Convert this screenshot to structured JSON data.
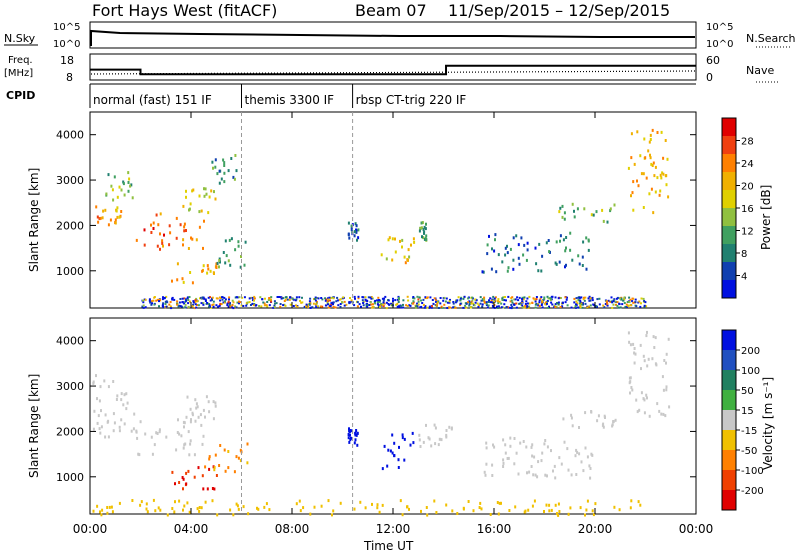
{
  "header": {
    "radar": "Fort Hays West (fitACF)",
    "beam": "Beam 07",
    "dates": "11/Sep/2015 – 12/Sep/2015"
  },
  "strips": {
    "nsky_label": "N.Sky",
    "nsky_ticks": [
      "10^5",
      "10^0"
    ],
    "nsearch_label": "N.Search",
    "freq_label": "Freq.",
    "freq_unit": "[MHz]",
    "freq_ticks": [
      "18",
      "8"
    ],
    "nave_label": "Nave",
    "nave_ticks": [
      "60",
      "0"
    ],
    "cpid_label": "CPID"
  },
  "cpid": [
    {
      "name": "normal (fast) 151 IF",
      "start_h": 0
    },
    {
      "name": "themis 3300 IF",
      "start_h": 6
    },
    {
      "name": "rbsp CT-trig 220 IF",
      "start_h": 10.4
    }
  ],
  "power_panel": {
    "ylabel": "Slant Range [km]",
    "yticks": [
      "4000",
      "3000",
      "2000",
      "1000"
    ],
    "cbar_label": "Power [dB]",
    "cbar_ticks": [
      "28",
      "24",
      "20",
      "16",
      "12",
      "8",
      "4"
    ],
    "cbar_colors": [
      "#e00000",
      "#f04010",
      "#ff8000",
      "#f0b000",
      "#e0d000",
      "#90c040",
      "#40a060",
      "#208070",
      "#1040b0",
      "#0010e0"
    ]
  },
  "velocity_panel": {
    "ylabel": "Slant Range [km]",
    "yticks": [
      "4000",
      "3000",
      "2000",
      "1000"
    ],
    "cbar_label": "Velocity [m s⁻¹]",
    "cbar_ticks": [
      "200",
      "100",
      "50",
      "15",
      "-15",
      "-50",
      "-100",
      "-200"
    ],
    "cbar_colors": [
      "#0010e0",
      "#2050c0",
      "#208060",
      "#40b040",
      "#c8c8c8",
      "#f0c000",
      "#ff8000",
      "#f04000",
      "#e00000"
    ]
  },
  "xaxis": {
    "label": "Time UT",
    "ticks": [
      "00:00",
      "04:00",
      "08:00",
      "12:00",
      "16:00",
      "20:00",
      "00:00"
    ]
  },
  "chart_data": {
    "type": "heatmap",
    "title": "Fort Hays West (fitACF) Beam 07 11/Sep/2015 – 12/Sep/2015",
    "xlabel": "Time UT",
    "ylabel": "Slant Range [km]",
    "xlim": [
      0,
      24
    ],
    "ylim": [
      180,
      4500
    ],
    "frequency_steps": [
      {
        "start_h": 0,
        "end_h": 2.0,
        "freq_mhz": 12
      },
      {
        "start_h": 2.0,
        "end_h": 14.1,
        "freq_mhz": 10.2
      },
      {
        "start_h": 14.1,
        "end_h": 24,
        "freq_mhz": 13.5
      }
    ],
    "power_regions": [
      {
        "t0": 0,
        "t1": 1.2,
        "r0": 2000,
        "r1": 2500,
        "db": 22
      },
      {
        "t0": 0.6,
        "t1": 1.7,
        "r0": 2500,
        "r1": 3200,
        "db": 12
      },
      {
        "t0": 1.8,
        "t1": 4.5,
        "r0": 1500,
        "r1": 2300,
        "db": 24
      },
      {
        "t0": 3.6,
        "t1": 5.0,
        "r0": 2300,
        "r1": 2900,
        "db": 16
      },
      {
        "t0": 3.2,
        "t1": 5.0,
        "r0": 750,
        "r1": 1300,
        "db": 20
      },
      {
        "t0": 5.0,
        "t1": 6.2,
        "r0": 1100,
        "r1": 1800,
        "db": 10
      },
      {
        "t0": 4.8,
        "t1": 5.8,
        "r0": 2900,
        "r1": 3600,
        "db": 8
      },
      {
        "t0": 10.2,
        "t1": 10.6,
        "r0": 1700,
        "r1": 2100,
        "db": 5
      },
      {
        "t0": 11.5,
        "t1": 12.8,
        "r0": 1200,
        "r1": 1800,
        "db": 18
      },
      {
        "t0": 13.0,
        "t1": 13.3,
        "r0": 1700,
        "r1": 2100,
        "db": 8
      },
      {
        "t0": 15.5,
        "t1": 20.0,
        "r0": 1000,
        "r1": 1900,
        "db": 6
      },
      {
        "t0": 18.5,
        "t1": 20.8,
        "r0": 2100,
        "r1": 2500,
        "db": 12
      },
      {
        "t0": 21.3,
        "t1": 22.9,
        "r0": 2300,
        "r1": 4200,
        "db": 20
      }
    ],
    "velocity_regions": [
      {
        "t0": 0,
        "t1": 1.8,
        "r0": 1900,
        "r1": 3300,
        "vel": 0
      },
      {
        "t0": 1.8,
        "t1": 4.5,
        "r0": 1500,
        "r1": 2300,
        "vel": 0
      },
      {
        "t0": 3.6,
        "t1": 5.0,
        "r0": 2300,
        "r1": 2900,
        "vel": 0
      },
      {
        "t0": 3.2,
        "t1": 5.0,
        "r0": 750,
        "r1": 1300,
        "vel": -150
      },
      {
        "t0": 4.5,
        "t1": 6.2,
        "r0": 1100,
        "r1": 1800,
        "vel": -60
      },
      {
        "t0": 10.2,
        "t1": 10.6,
        "r0": 1700,
        "r1": 2100,
        "vel": 200
      },
      {
        "t0": 11.5,
        "t1": 12.8,
        "r0": 1200,
        "r1": 2000,
        "vel": 220
      },
      {
        "t0": 13.0,
        "t1": 14.5,
        "r0": 1700,
        "r1": 2200,
        "vel": 0
      },
      {
        "t0": 15.5,
        "t1": 20.0,
        "r0": 1000,
        "r1": 1900,
        "vel": 0
      },
      {
        "t0": 18.5,
        "t1": 20.8,
        "r0": 2100,
        "r1": 2500,
        "vel": 0
      },
      {
        "t0": 21.3,
        "t1": 22.9,
        "r0": 2300,
        "r1": 4300,
        "vel": 0
      },
      {
        "t0": 0,
        "t1": 22,
        "r0": 180,
        "r1": 520,
        "vel": -30
      }
    ]
  }
}
